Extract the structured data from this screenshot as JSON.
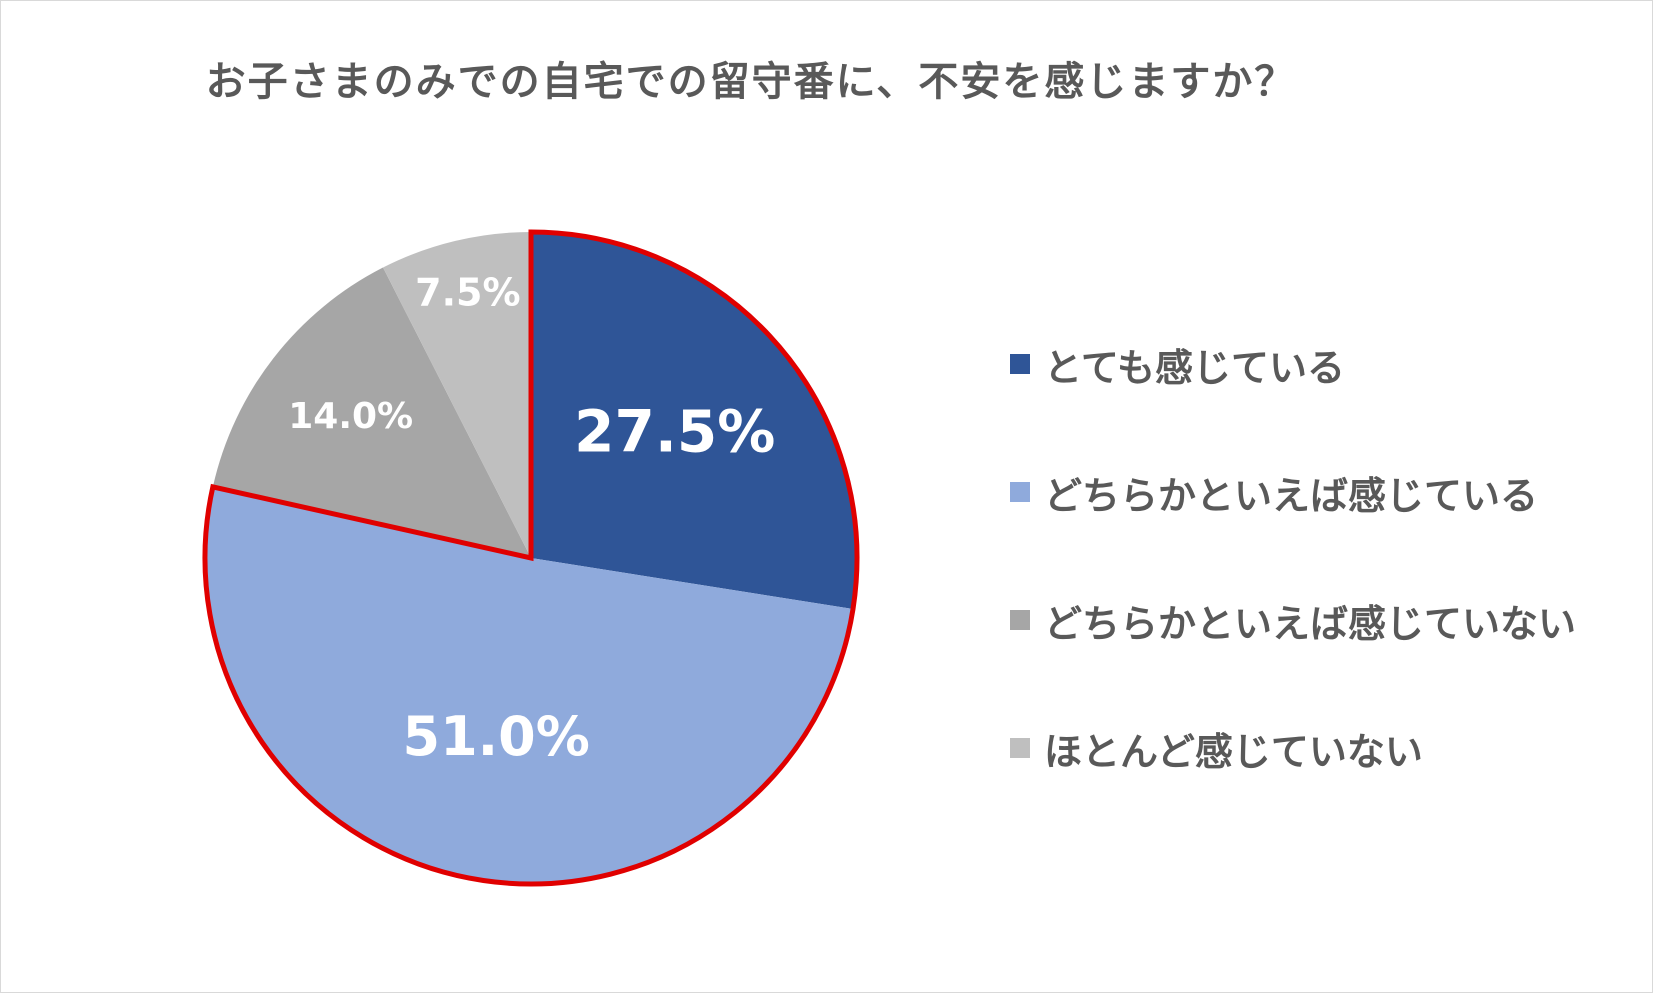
{
  "chart_data": {
    "type": "pie",
    "title": "お子さまのみでの自宅での留守番に、不安を感じますか？",
    "categories": [
      "とても感じている",
      "どちらかといえば感じている",
      "どちらかといえば感じていない",
      "ほとんど感じていない"
    ],
    "values": [
      27.5,
      51.0,
      14.0,
      7.5
    ],
    "value_labels": [
      "27.5%",
      "51.0%",
      "14.0%",
      "7.5%"
    ],
    "colors": [
      "#2f5597",
      "#8faadc",
      "#a6a6a6",
      "#bfbfbf"
    ],
    "highlight": {
      "slices": [
        "とても感じている",
        "どちらかといえば感じている"
      ],
      "outline_color": "#e00000"
    },
    "legend_position": "right",
    "start_angle": "12 o'clock",
    "direction": "clockwise"
  }
}
